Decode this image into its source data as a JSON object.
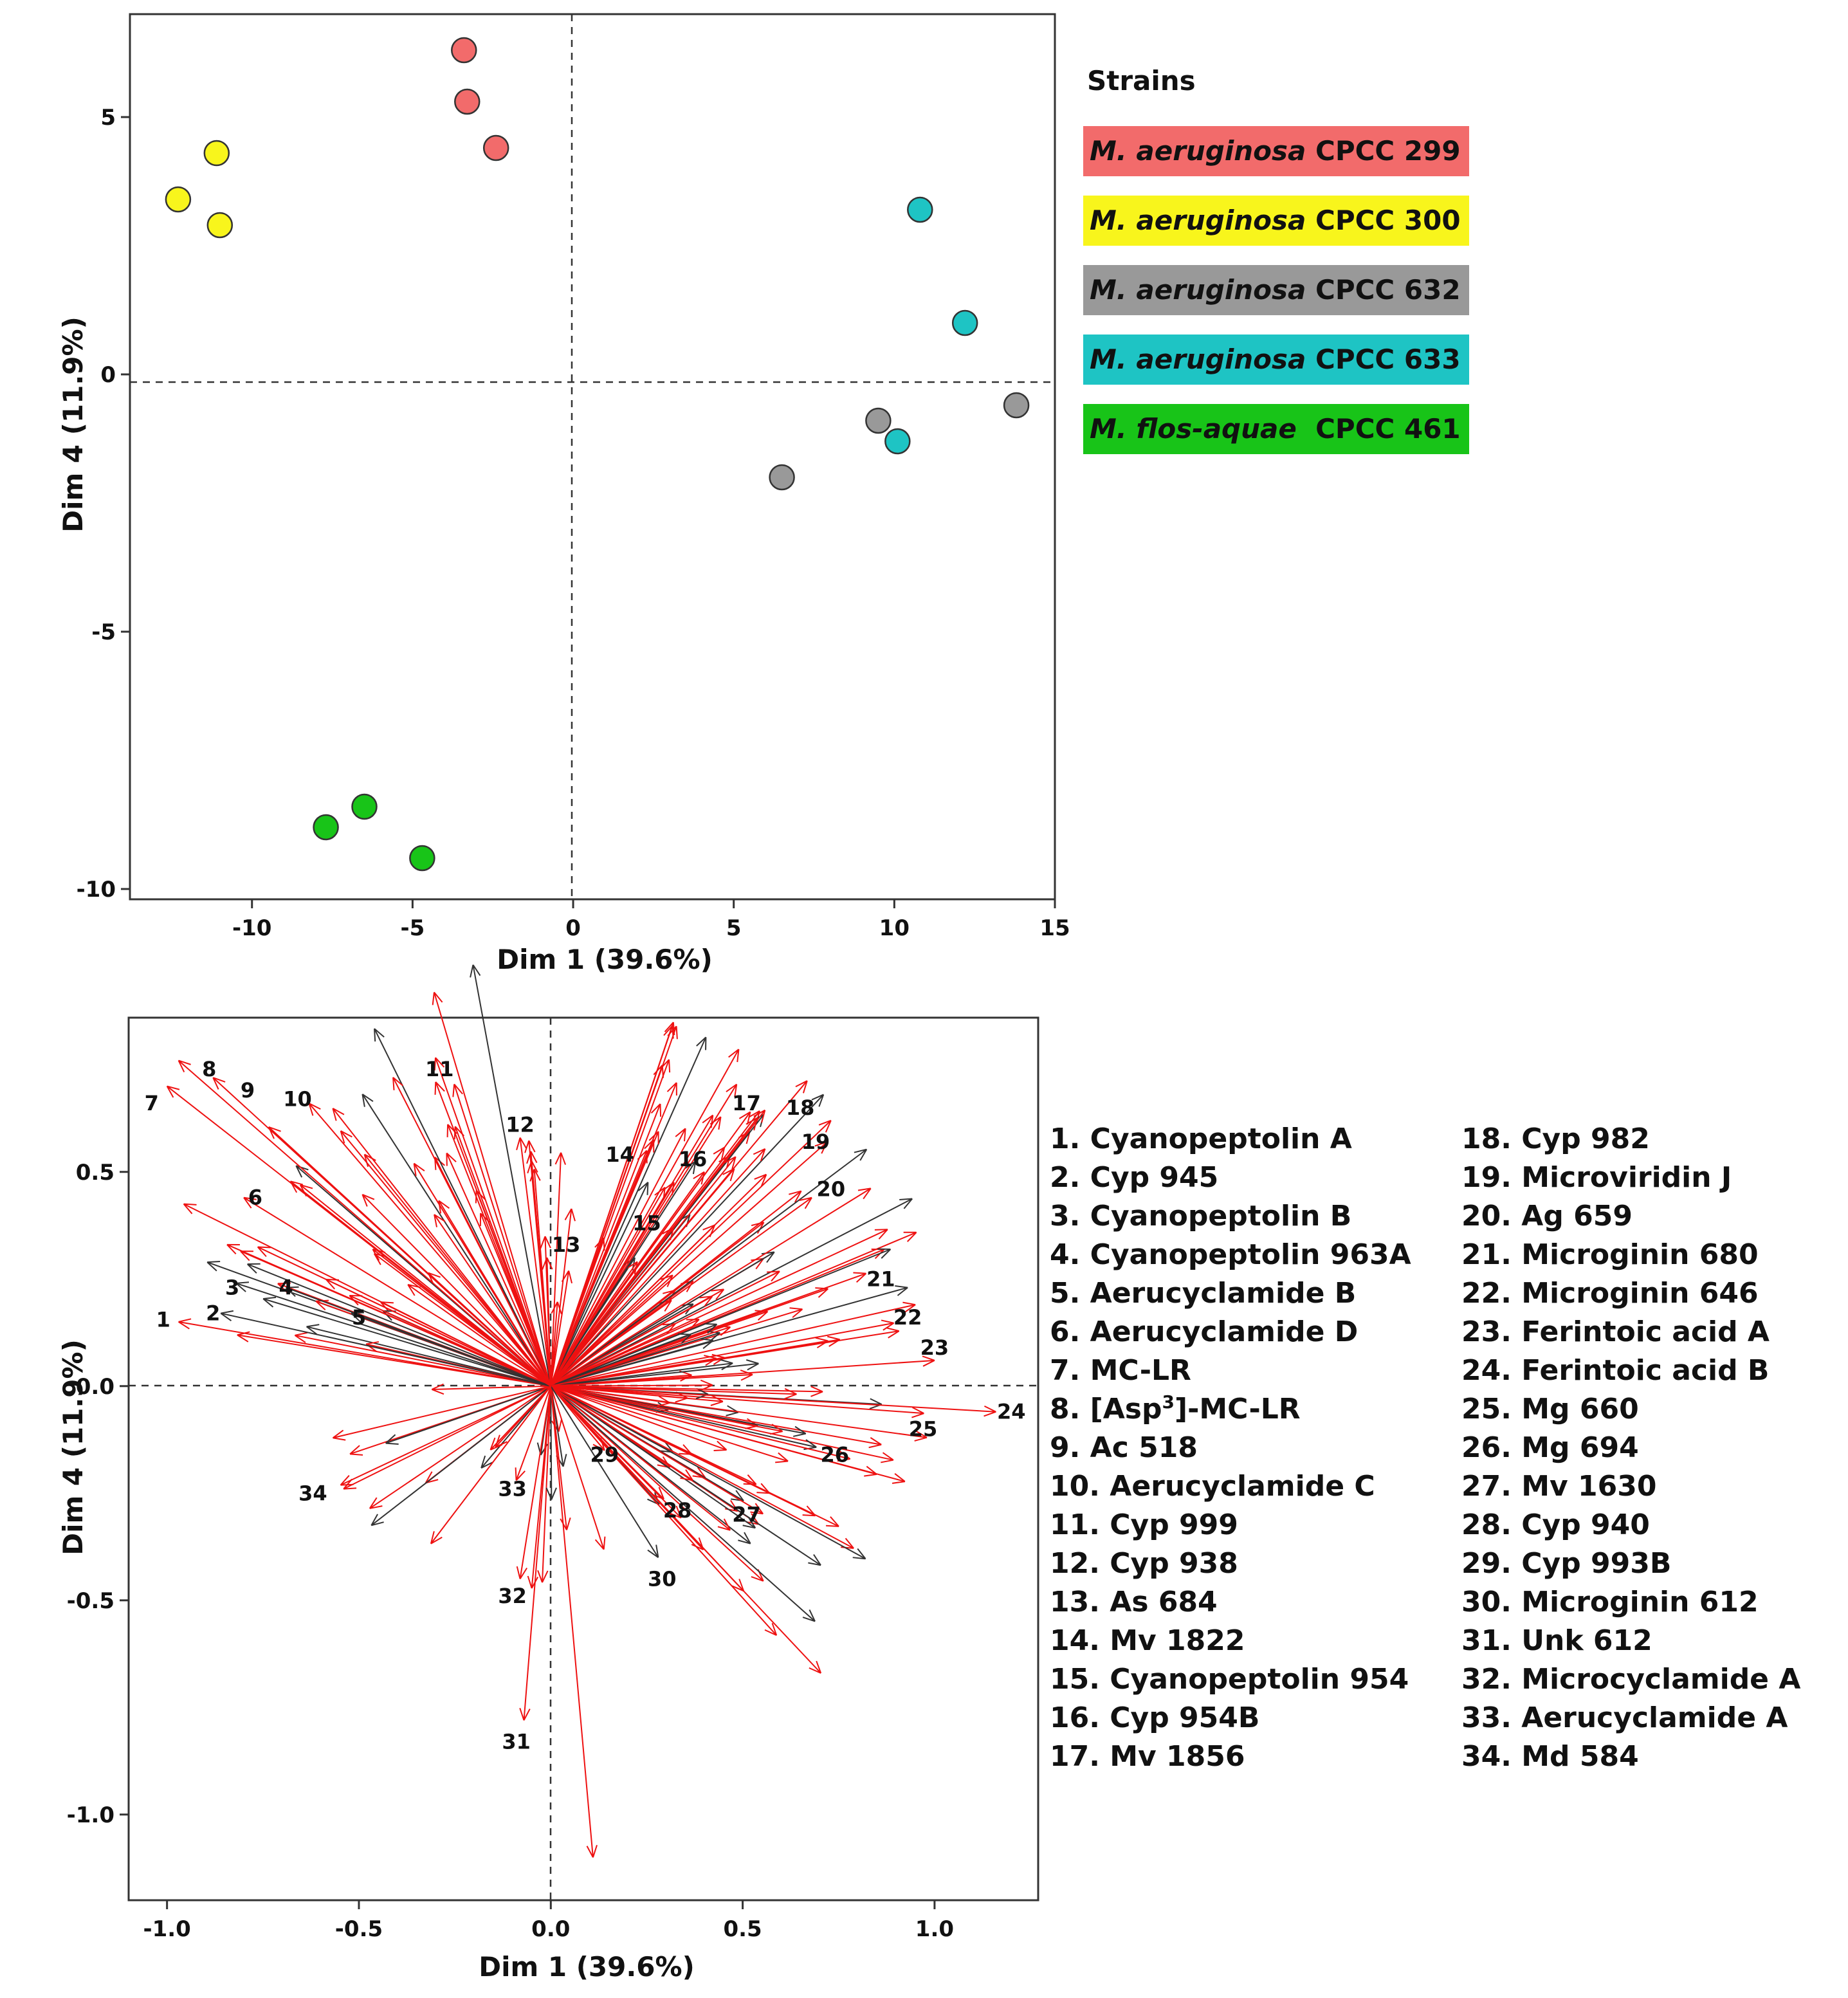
{
  "chart_data": [
    {
      "type": "scatter",
      "title": "",
      "xlabel": "Dim 1 (39.6%)",
      "ylabel": "Dim 4 (11.9%)",
      "xlim": [
        -13.8,
        15
      ],
      "ylim": [
        -10.2,
        7
      ],
      "xticks": [
        -10,
        -5,
        0,
        5,
        10,
        15
      ],
      "yticks": [
        5,
        0,
        -5,
        -10
      ],
      "xtick_labels": [
        "-10",
        "-5",
        "0",
        "5",
        "10",
        "15"
      ],
      "ytick_labels": [
        "5",
        "0",
        "-5",
        "-10"
      ],
      "legend": {
        "title": "Strains",
        "placement": "right"
      },
      "series": [
        {
          "name_italic": "M. aeruginosa",
          "name_rest": " CPCC 299",
          "color": "#f26b6b",
          "points": [
            [
              -3.4,
              6.3
            ],
            [
              -3.3,
              5.3
            ],
            [
              -2.4,
              4.4
            ]
          ]
        },
        {
          "name_italic": "M. aeruginosa",
          "name_rest": " CPCC 300",
          "color": "#f8f51c",
          "points": [
            [
              -12.3,
              3.4
            ],
            [
              -11.1,
              4.3
            ],
            [
              -11.0,
              2.9
            ]
          ]
        },
        {
          "name_italic": "M. aeruginosa",
          "name_rest": " CPCC 632",
          "color": "#999999",
          "points": [
            [
              6.5,
              -2.0
            ],
            [
              9.5,
              -0.9
            ],
            [
              13.8,
              -0.6
            ]
          ]
        },
        {
          "name_italic": "M. aeruginosa",
          "name_rest": " CPCC 633",
          "color": "#1ec4c4",
          "points": [
            [
              10.8,
              3.2
            ],
            [
              12.2,
              1.0
            ],
            [
              10.1,
              -1.3
            ]
          ]
        },
        {
          "name_italic": "M. flos-aquae",
          "name_rest": "  CPCC 461",
          "color": "#18c418",
          "points": [
            [
              -7.7,
              -8.8
            ],
            [
              -6.5,
              -8.4
            ],
            [
              -4.7,
              -9.4
            ]
          ]
        }
      ]
    },
    {
      "type": "biplot",
      "title": "",
      "xlabel": "Dim 1 (39.6%)",
      "ylabel": "Dim 4 (11.9%)",
      "xlim": [
        -1.1,
        1.27
      ],
      "ylim": [
        -1.2,
        0.86
      ],
      "xticks": [
        -1.0,
        -0.5,
        0.0,
        0.5,
        1.0
      ],
      "yticks": [
        0.5,
        0.0,
        -0.5,
        -1.0
      ],
      "xtick_labels": [
        "-1.0",
        "-0.5",
        "0.0",
        "0.5",
        "1.0"
      ],
      "ytick_labels": [
        "0.5",
        "0.0",
        "-0.5",
        "-1.0"
      ],
      "labeled_vectors": [
        {
          "id": "1",
          "x": -0.97,
          "y": 0.15,
          "lx": -1.01,
          "ly": 0.155
        },
        {
          "id": "2",
          "x": -0.86,
          "y": 0.17,
          "lx": -0.88,
          "ly": 0.17
        },
        {
          "id": "3",
          "x": -0.82,
          "y": 0.24,
          "lx": -0.83,
          "ly": 0.23
        },
        {
          "id": "4",
          "x": -0.69,
          "y": 0.23,
          "lx": -0.69,
          "ly": 0.23
        },
        {
          "id": "5",
          "x": -0.52,
          "y": 0.17,
          "lx": -0.5,
          "ly": 0.16
        },
        {
          "id": "6",
          "x": -0.8,
          "y": 0.44,
          "lx": -0.77,
          "ly": 0.44
        },
        {
          "id": "7",
          "x": -1.0,
          "y": 0.7,
          "lx": -1.04,
          "ly": 0.66
        },
        {
          "id": "8",
          "x": -0.97,
          "y": 0.76,
          "lx": -0.89,
          "ly": 0.74
        },
        {
          "id": "9",
          "x": -0.88,
          "y": 0.72,
          "lx": -0.79,
          "ly": 0.69
        },
        {
          "id": "10",
          "x": -0.63,
          "y": 0.66,
          "lx": -0.66,
          "ly": 0.67
        },
        {
          "id": "11",
          "x": -0.3,
          "y": 0.71,
          "lx": -0.29,
          "ly": 0.74
        },
        {
          "id": "12",
          "x": -0.08,
          "y": 0.58,
          "lx": -0.08,
          "ly": 0.61
        },
        {
          "id": "13",
          "x": -0.01,
          "y": 0.3,
          "lx": 0.04,
          "ly": 0.33
        },
        {
          "id": "14",
          "x": 0.25,
          "y": 0.55,
          "lx": 0.18,
          "ly": 0.54
        },
        {
          "id": "15",
          "x": 0.32,
          "y": 0.37,
          "lx": 0.25,
          "ly": 0.38
        },
        {
          "id": "16",
          "x": 0.4,
          "y": 0.5,
          "lx": 0.37,
          "ly": 0.53
        },
        {
          "id": "17",
          "x": 0.52,
          "y": 0.64,
          "lx": 0.51,
          "ly": 0.66
        },
        {
          "id": "18",
          "x": 0.73,
          "y": 0.62,
          "lx": 0.65,
          "ly": 0.65
        },
        {
          "id": "19",
          "x": 0.72,
          "y": 0.57,
          "lx": 0.69,
          "ly": 0.57
        },
        {
          "id": "20",
          "x": 0.68,
          "y": 0.44,
          "lx": 0.73,
          "ly": 0.46
        },
        {
          "id": "21",
          "x": 0.93,
          "y": 0.23,
          "lx": 0.86,
          "ly": 0.25
        },
        {
          "id": "22",
          "x": 0.95,
          "y": 0.19,
          "lx": 0.93,
          "ly": 0.16
        },
        {
          "id": "23",
          "x": 1.0,
          "y": 0.06,
          "lx": 1.0,
          "ly": 0.09
        },
        {
          "id": "24",
          "x": 1.16,
          "y": -0.06,
          "lx": 1.2,
          "ly": -0.06
        },
        {
          "id": "25",
          "x": 0.98,
          "y": -0.12,
          "lx": 0.97,
          "ly": -0.1
        },
        {
          "id": "26",
          "x": 0.78,
          "y": -0.17,
          "lx": 0.74,
          "ly": -0.16
        },
        {
          "id": "27",
          "x": 0.57,
          "y": -0.25,
          "lx": 0.51,
          "ly": -0.3
        },
        {
          "id": "28",
          "x": 0.37,
          "y": -0.22,
          "lx": 0.33,
          "ly": -0.29
        },
        {
          "id": "29",
          "x": 0.14,
          "y": -0.15,
          "lx": 0.14,
          "ly": -0.16
        },
        {
          "id": "30",
          "x": 0.28,
          "y": -0.4,
          "lx": 0.29,
          "ly": -0.45
        },
        {
          "id": "31",
          "x": -0.07,
          "y": -0.78,
          "lx": -0.09,
          "ly": -0.83
        },
        {
          "id": "32",
          "x": -0.08,
          "y": -0.45,
          "lx": -0.1,
          "ly": -0.49
        },
        {
          "id": "33",
          "x": -0.09,
          "y": -0.22,
          "lx": -0.1,
          "ly": -0.24
        },
        {
          "id": "34",
          "x": -0.54,
          "y": -0.24,
          "lx": -0.62,
          "ly": -0.25
        }
      ],
      "legend_list": [
        "1. Cyanopeptolin A",
        "2. Cyp 945",
        "3. Cyanopeptolin B",
        "4. Cyanopeptolin 963A",
        "5. Aerucyclamide B",
        "6. Aerucyclamide D",
        "7. MC-LR",
        "8. [Asp3]-MC-LR",
        "9. Ac 518",
        "10. Aerucyclamide C",
        "11. Cyp 999",
        "12. Cyp 938",
        "13. As 684",
        "14. Mv 1822",
        "15. Cyanopeptolin 954",
        "16. Cyp 954B",
        "17. Mv 1856",
        "18. Cyp 982",
        "19. Microviridin J",
        "20. Ag 659",
        "21. Microginin 680",
        "22. Microginin 646",
        "23. Ferintoic acid A",
        "24. Ferintoic acid B",
        "25. Mg 660",
        "26. Mg 694",
        "27. Mv 1630",
        "28. Cyp 940",
        "29. Cyp 993B",
        "30. Microginin 612",
        "31. Unk 612",
        "32. Microcyclamide A",
        "33. Aerucyclamide A",
        "34. Md 584"
      ],
      "item8_parts": {
        "prefix": "8. [Asp",
        "sup": "3",
        "suffix": "]-MC-LR"
      },
      "colors": {
        "red": "#ee1111",
        "black": "#333333"
      }
    }
  ]
}
